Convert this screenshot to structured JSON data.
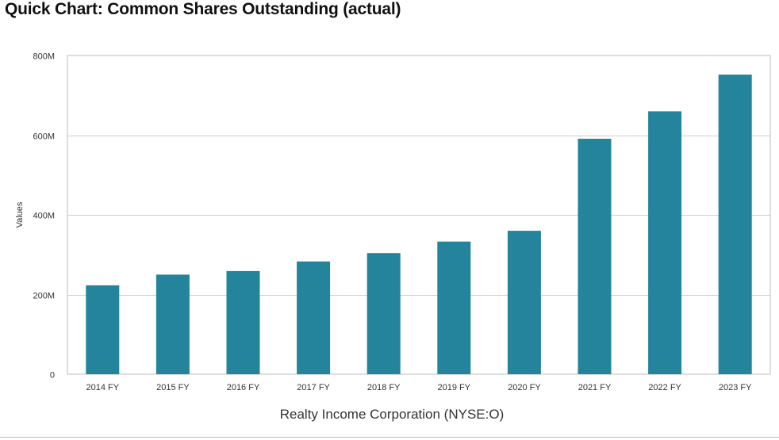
{
  "chart_title": "Quick Chart: Common Shares Outstanding (actual)",
  "colors": {
    "bar": "#24849b",
    "grid": "#cfcfcf",
    "frame": "#bdbdbd"
  },
  "chart_data": {
    "type": "bar",
    "title": "Quick Chart: Common Shares Outstanding (actual)",
    "xlabel": "Realty Income Corporation (NYSE:O)",
    "ylabel": "Values",
    "categories": [
      "2014 FY",
      "2015 FY",
      "2016 FY",
      "2017 FY",
      "2018 FY",
      "2019 FY",
      "2020 FY",
      "2021 FY",
      "2022 FY",
      "2023 FY"
    ],
    "values": [
      223000000,
      250000000,
      259000000,
      283000000,
      304000000,
      333000000,
      360000000,
      591000000,
      660000000,
      752000000
    ],
    "ylim": [
      0,
      800000000
    ],
    "yticks": [
      0,
      200000000,
      400000000,
      600000000,
      800000000
    ],
    "ytick_labels": [
      "0",
      "200M",
      "400M",
      "600M",
      "800M"
    ],
    "grid": true,
    "legend": "none"
  }
}
